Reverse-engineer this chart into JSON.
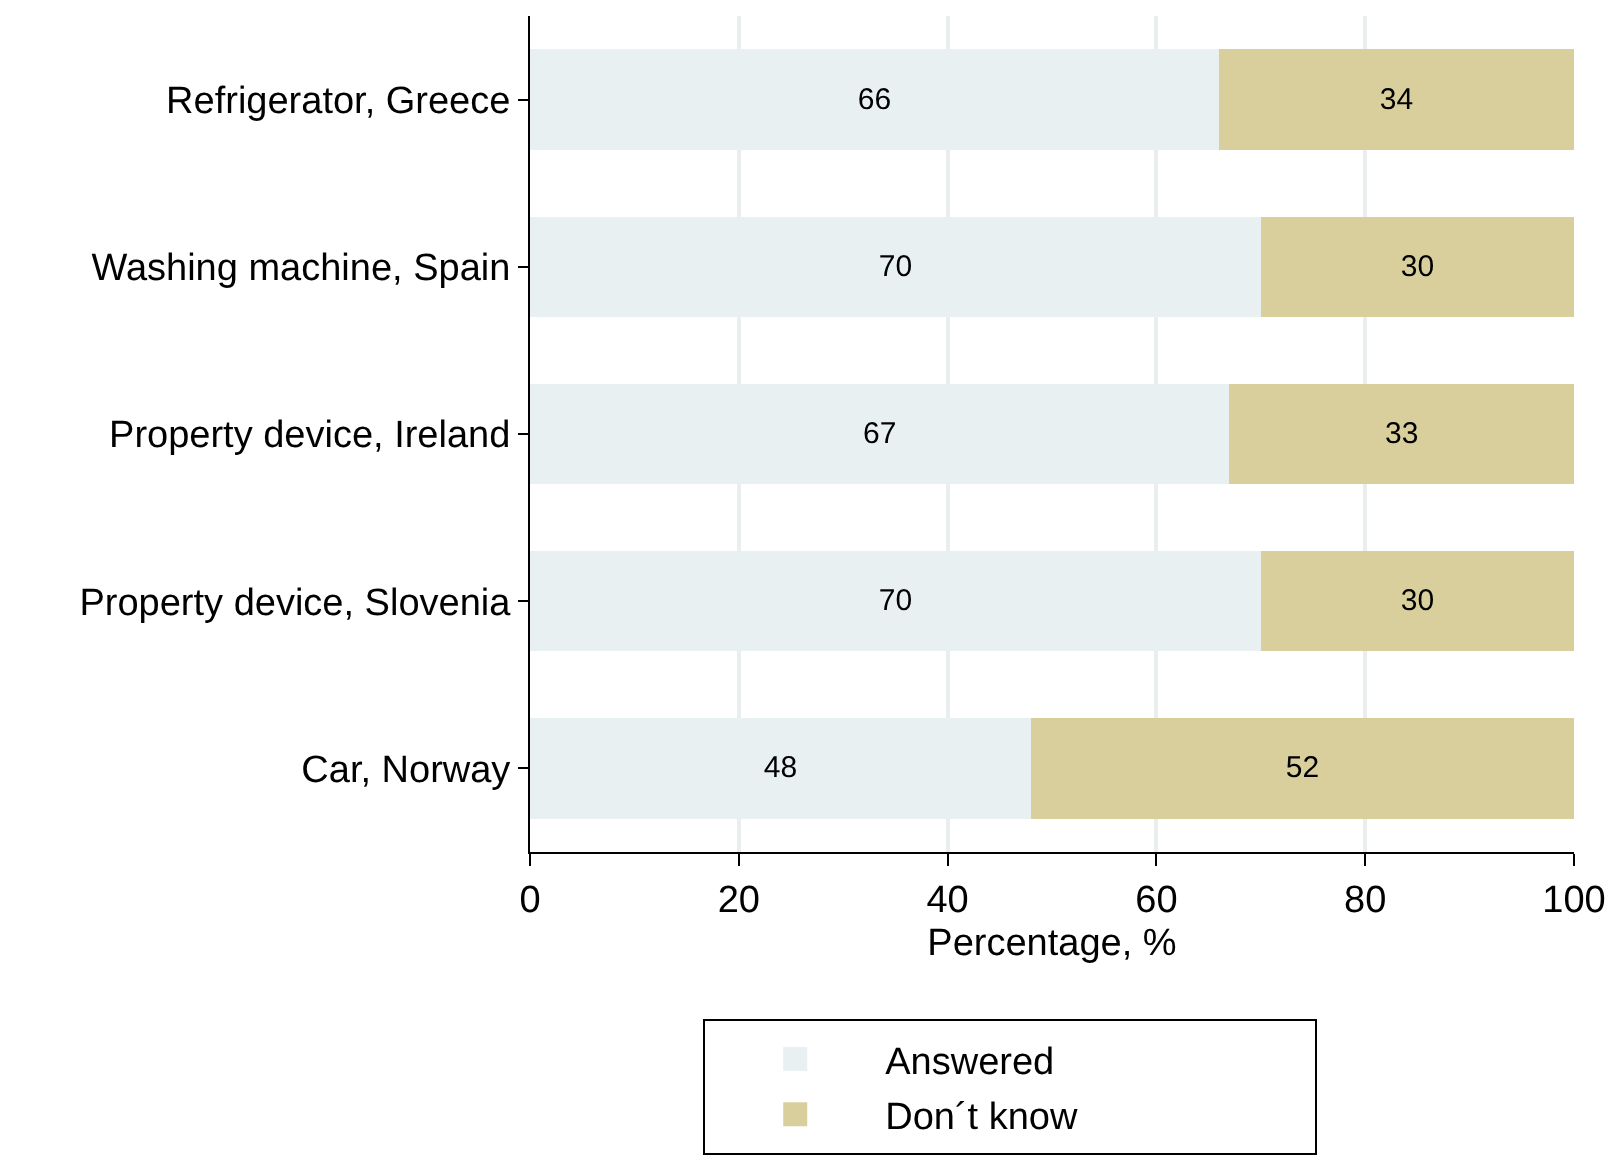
{
  "chart_data": {
    "type": "bar",
    "orientation": "horizontal",
    "stacked": true,
    "xlabel": "Percentage, %",
    "categories": [
      "Refrigerator, Greece",
      "Washing machine, Spain",
      "Property device, Ireland",
      "Property device, Slovenia",
      "Car, Norway"
    ],
    "series": [
      {
        "name": "Answered",
        "color": "#e8f0f2",
        "values": [
          66,
          70,
          67,
          70,
          48
        ]
      },
      {
        "name": "Don´t know",
        "color": "#d9cf9c",
        "values": [
          34,
          30,
          33,
          30,
          52
        ]
      }
    ],
    "xlim": [
      0,
      100
    ],
    "xticks": [
      0,
      20,
      40,
      60,
      80,
      100
    ],
    "grid": "x",
    "legend": "bottom",
    "data_labels": true
  }
}
